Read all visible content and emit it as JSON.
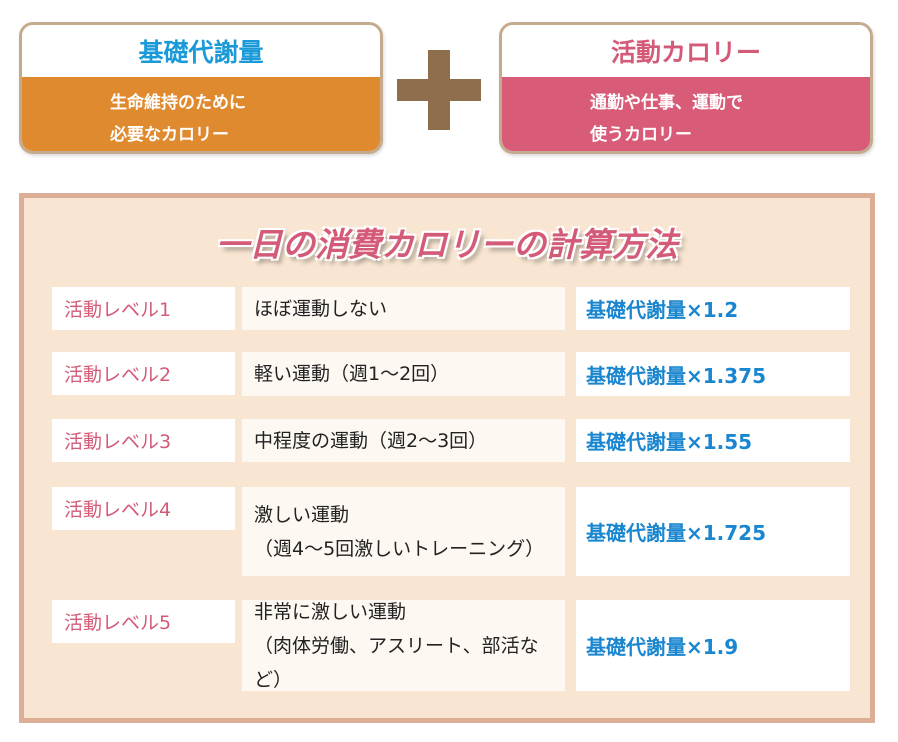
{
  "bmr_box": {
    "title": "基礎代謝量",
    "line1": "生命維持のために",
    "line2": "必要なカロリー"
  },
  "activity_box": {
    "title": "活動カロリー",
    "line1": "通勤や仕事、運動で",
    "line2": "使うカロリー"
  },
  "panel": {
    "title": "一日の消費カロリーの計算方法",
    "rows": [
      {
        "level": "活動レベル1",
        "desc1": "ほぼ運動しない",
        "desc2": "",
        "formula": "基礎代謝量×1.2"
      },
      {
        "level": "活動レベル2",
        "desc1": "軽い運動（週1～2回）",
        "desc2": "",
        "formula": "基礎代謝量×1.375"
      },
      {
        "level": "活動レベル3",
        "desc1": "中程度の運動（週2～3回）",
        "desc2": "",
        "formula": "基礎代謝量×1.55"
      },
      {
        "level": "活動レベル4",
        "desc1": "激しい運動",
        "desc2": "（週4～5回激しいトレーニング）",
        "formula": "基礎代謝量×1.725"
      },
      {
        "level": "活動レベル5",
        "desc1": "非常に激しい運動",
        "desc2": "（肉体労働、アスリート、部活など）",
        "formula": "基礎代謝量×1.9"
      }
    ]
  },
  "colors": {
    "blue": "#1a9ad8",
    "pink": "#d45b78",
    "orange": "#e08a30",
    "brown": "#8f6e4e",
    "panel_bg": "#f8e6d2"
  }
}
